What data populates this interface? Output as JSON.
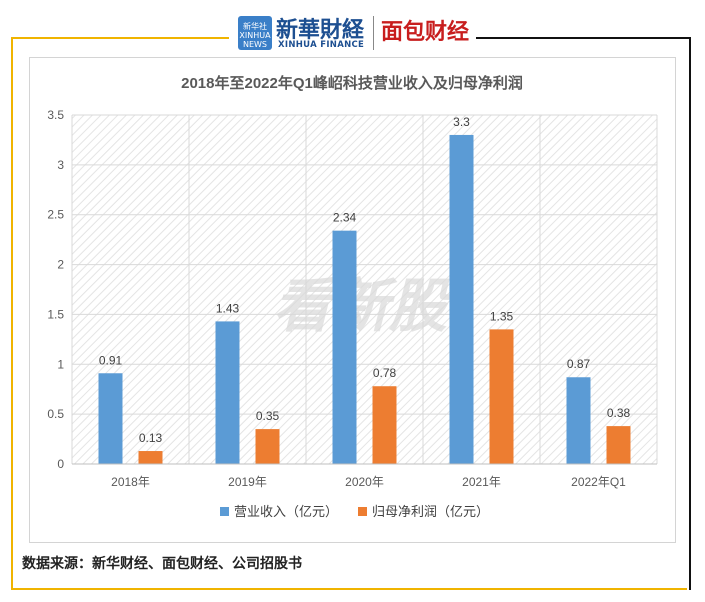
{
  "brand": {
    "logo_box_text": "新华社 XINHUA NEWS",
    "logo_cn": "新華財経",
    "logo_en": "XINHUA FINANCE",
    "partner": "面包财经"
  },
  "watermark": "看新股",
  "source": "数据来源：新华财经、面包财经、公司招股书",
  "colors": {
    "series1": "#5b9bd5",
    "series2": "#ed7d31",
    "frame_gold": "#f0b400"
  },
  "chart_data": {
    "type": "bar",
    "title": "2018年至2022年Q1峰岹科技营业收入及归母净利润",
    "xlabel": "",
    "ylabel": "",
    "categories": [
      "2018年",
      "2019年",
      "2020年",
      "2021年",
      "2022年Q1"
    ],
    "series": [
      {
        "name": "营业收入（亿元）",
        "values": [
          0.91,
          1.43,
          2.34,
          3.3,
          0.87
        ],
        "labels": [
          "0.91",
          "1.43",
          "2.34",
          "3.3",
          "0.87"
        ]
      },
      {
        "name": "归母净利润（亿元）",
        "values": [
          0.13,
          0.35,
          0.78,
          1.35,
          0.38
        ],
        "labels": [
          "0.13",
          "0.35",
          "0.78",
          "1.35",
          "0.38"
        ]
      }
    ],
    "ylim": [
      0,
      3.5
    ],
    "yticks": [
      "0",
      "0.5",
      "1",
      "1.5",
      "2",
      "2.5",
      "3",
      "3.5"
    ],
    "legend_position": "bottom",
    "grid": true
  }
}
